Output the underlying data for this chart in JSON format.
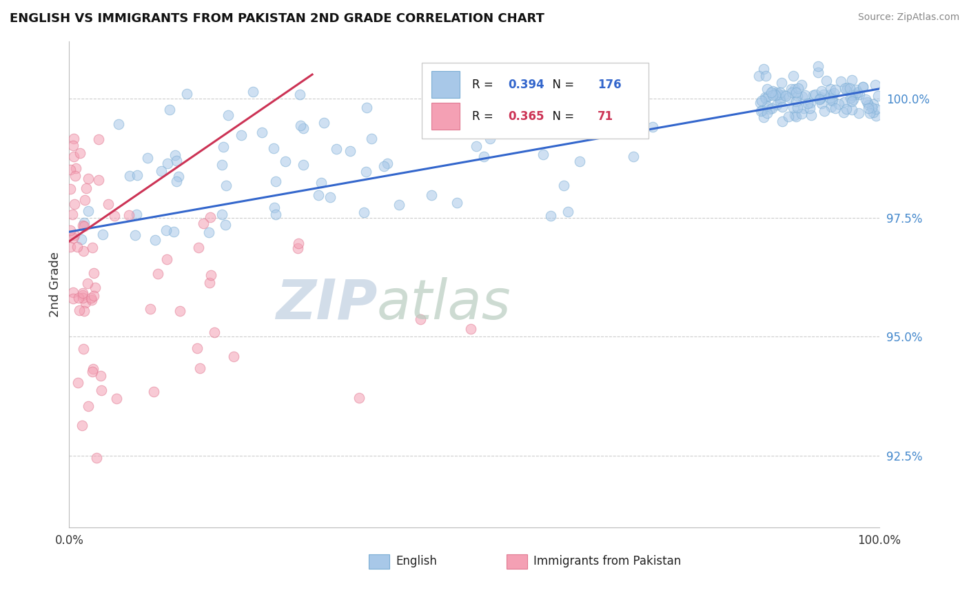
{
  "title": "ENGLISH VS IMMIGRANTS FROM PAKISTAN 2ND GRADE CORRELATION CHART",
  "source": "Source: ZipAtlas.com",
  "ylabel": "2nd Grade",
  "legend_english": "English",
  "legend_pakistan": "Immigrants from Pakistan",
  "R_english": 0.394,
  "N_english": 176,
  "R_pakistan": 0.365,
  "N_pakistan": 71,
  "english_color": "#a8c8e8",
  "english_edge_color": "#7aadd4",
  "pakistan_color": "#f4a0b4",
  "pakistan_edge_color": "#e07890",
  "english_line_color": "#3366cc",
  "pakistan_line_color": "#cc3355",
  "x_min": 0.0,
  "x_max": 100.0,
  "y_min": 91.0,
  "y_max": 101.2,
  "yticks": [
    92.5,
    95.0,
    97.5,
    100.0
  ],
  "background_color": "#ffffff",
  "grid_color": "#cccccc",
  "marker_size": 110,
  "marker_alpha": 0.55,
  "watermark_zip_color": "#c0cfe0",
  "watermark_atlas_color": "#b8ccc0",
  "legend_text_color": "#111111",
  "legend_R_english_color": "#3366cc",
  "legend_R_pakistan_color": "#cc3355",
  "eng_line_x0": 0,
  "eng_line_x1": 100,
  "eng_line_y0": 97.2,
  "eng_line_y1": 100.2,
  "pak_line_x0": 0,
  "pak_line_x1": 30,
  "pak_line_y0": 97.0,
  "pak_line_y1": 100.5
}
